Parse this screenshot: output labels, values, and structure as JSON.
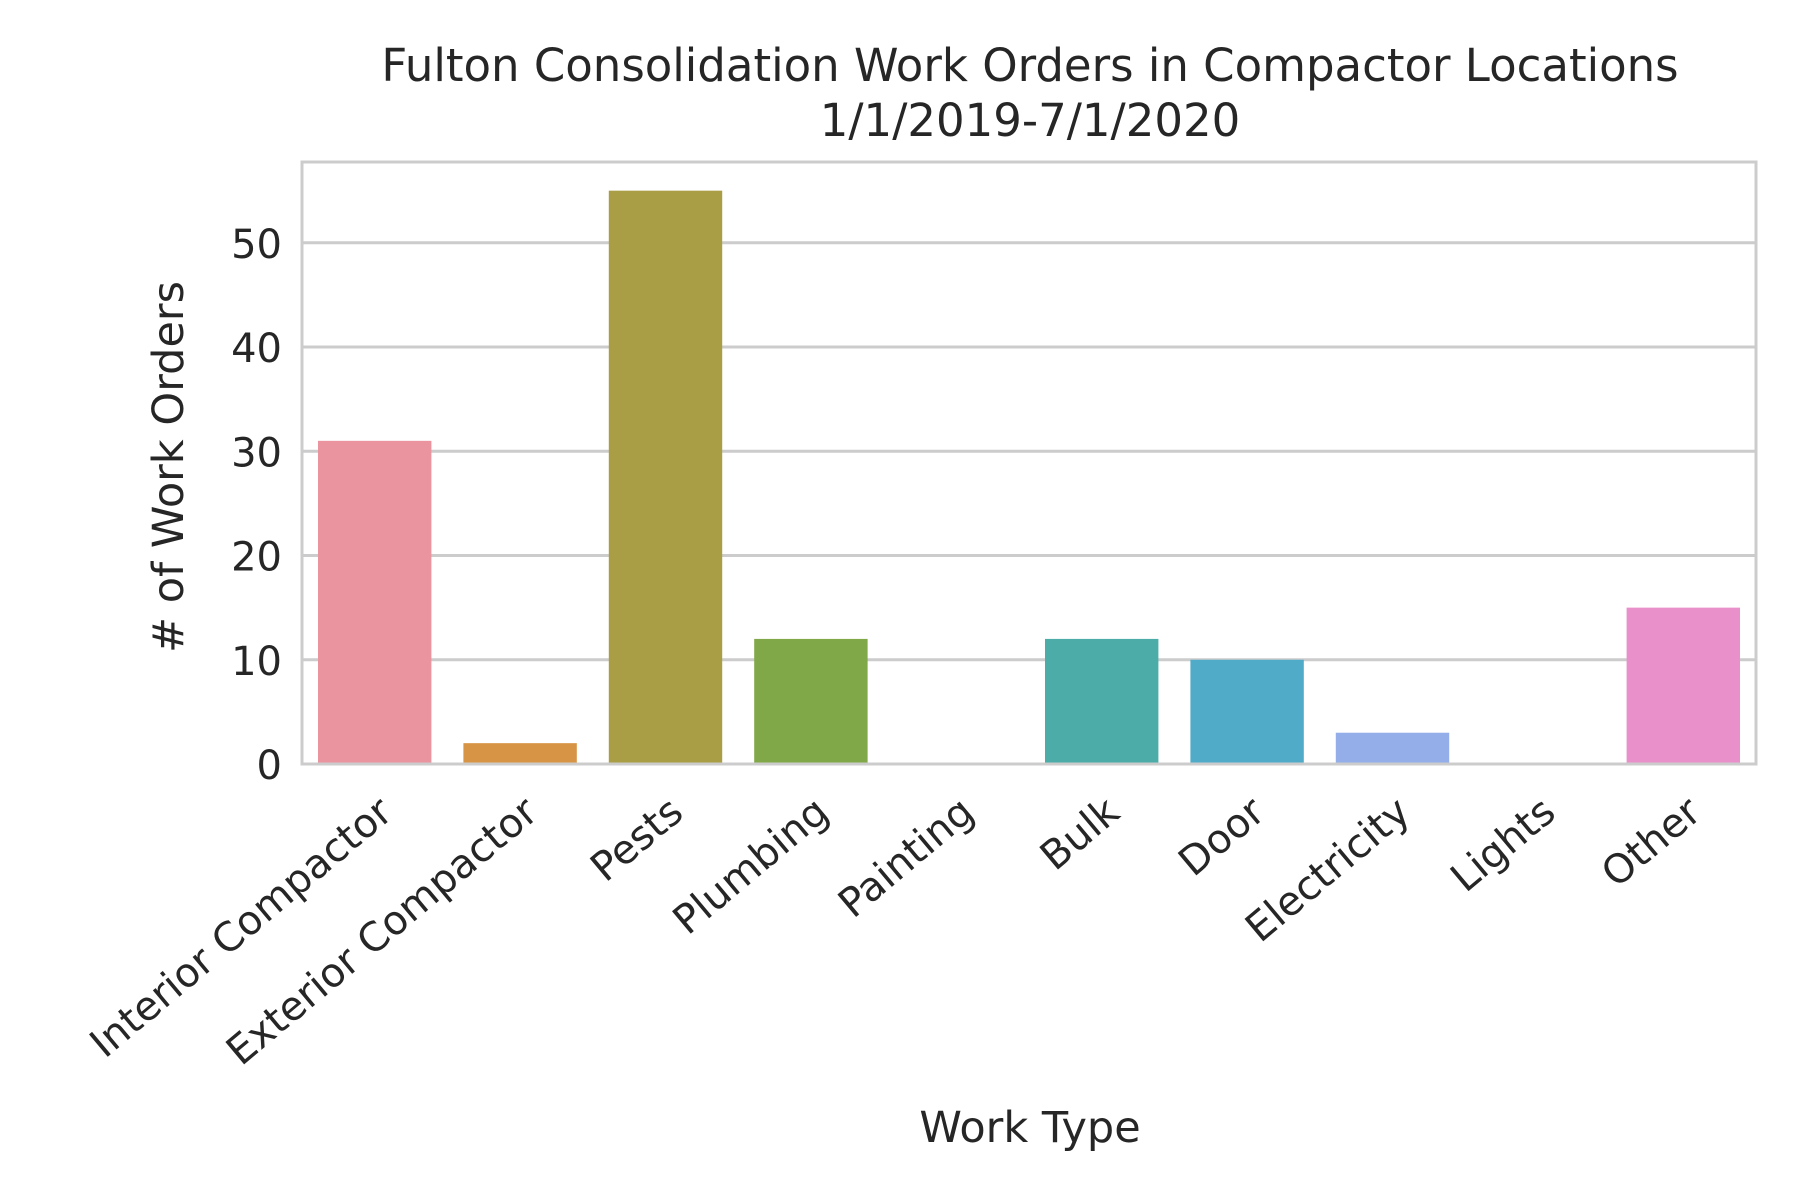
{
  "chart_data": {
    "type": "bar",
    "title": "Fulton Consolidation Work Orders in Compactor Locations",
    "subtitle": "1/1/2019-7/1/2020",
    "xlabel": "Work Type",
    "ylabel": "# of Work Orders",
    "ylim": [
      0,
      57.75
    ],
    "yticks": [
      0,
      10,
      20,
      30,
      40,
      50
    ],
    "grid": true,
    "categories": [
      "Interior Compactor",
      "Exterior Compactor",
      "Pests",
      "Plumbing",
      "Painting",
      "Bulk",
      "Door",
      "Electricity",
      "Lights",
      "Other"
    ],
    "values": [
      31,
      2,
      55,
      12,
      0,
      12,
      10,
      3,
      0,
      15
    ],
    "colors": [
      "#e9949f",
      "#d89445",
      "#a99d46",
      "#80a848",
      "#4ca88f",
      "#4caca8",
      "#50abc8",
      "#93aee9",
      "#c49ee9",
      "#e990cb"
    ]
  }
}
